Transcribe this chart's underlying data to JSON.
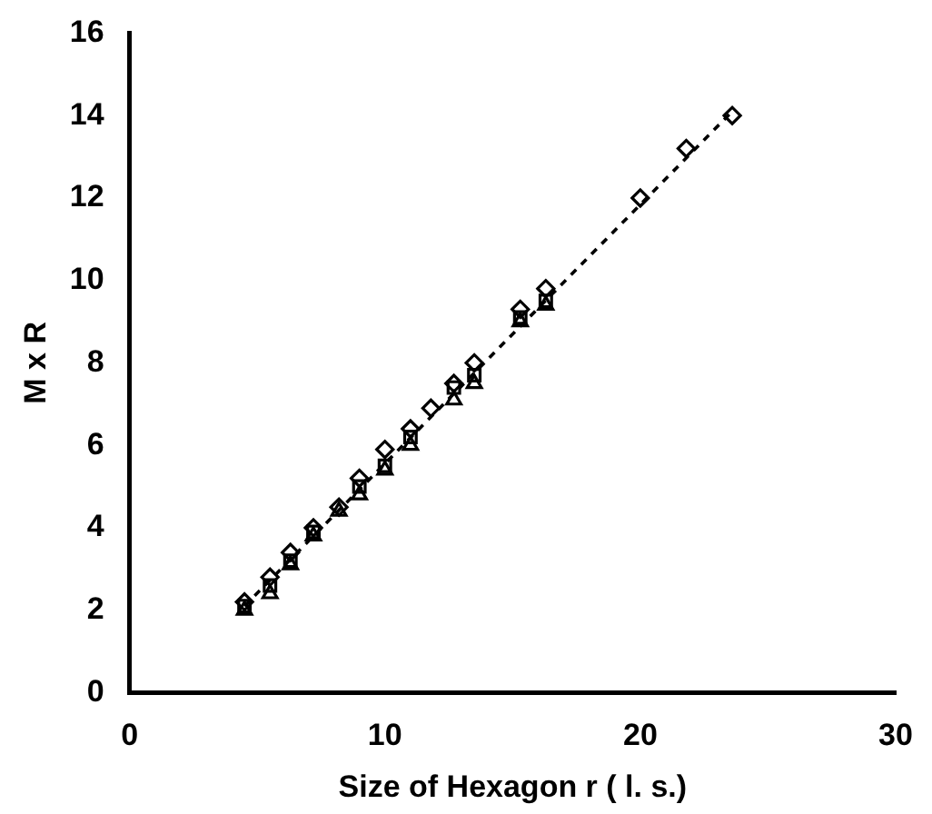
{
  "chart_data": {
    "type": "scatter",
    "xlabel": "Size of Hexagon r ( l. s.)",
    "ylabel": "M x R",
    "xlim": [
      0,
      30
    ],
    "xticks": [
      0,
      10,
      20,
      30
    ],
    "ylim": [
      0,
      16
    ],
    "yticks": [
      0,
      2,
      4,
      6,
      8,
      10,
      12,
      14,
      16
    ],
    "grid": false,
    "legend": false,
    "series": [
      {
        "color": "#000000",
        "marker": "square",
        "x": [
          4.5,
          5.5,
          6.3,
          7.2,
          8.2,
          9.0,
          10.0,
          11.0,
          11.8,
          12.7,
          13.5,
          15.3,
          16.3
        ],
        "values": [
          2.1,
          2.6,
          3.2,
          3.9,
          null,
          5.0,
          5.5,
          6.2,
          null,
          7.4,
          7.7,
          9.1,
          9.5
        ]
      },
      {
        "color": "#000000",
        "marker": "triangle",
        "x": [
          4.5,
          5.5,
          6.3,
          7.2,
          8.2,
          9.0,
          10.0,
          11.0,
          11.8,
          12.7,
          13.5,
          15.3,
          16.3
        ],
        "values": [
          2.0,
          2.4,
          3.1,
          3.8,
          4.4,
          4.8,
          5.4,
          6.0,
          null,
          7.1,
          7.5,
          9.0,
          9.4
        ]
      },
      {
        "color": "#000000",
        "marker": "diamond",
        "x": [
          4.5,
          5.5,
          6.3,
          7.2,
          8.2,
          9.0,
          10.0,
          11.0,
          11.8,
          12.7,
          13.5,
          15.3,
          16.3,
          20.0,
          21.8,
          23.6
        ],
        "values": [
          2.2,
          2.8,
          3.4,
          4.0,
          4.5,
          5.2,
          5.9,
          6.4,
          6.9,
          7.5,
          8.0,
          9.3,
          9.8,
          12.0,
          13.2,
          14.0
        ]
      },
      {
        "type": "line",
        "color": "#000000",
        "marker": "none",
        "line_style": "dashed",
        "x": [
          4.5,
          23.6
        ],
        "values": [
          2.1,
          14.1
        ]
      }
    ]
  }
}
